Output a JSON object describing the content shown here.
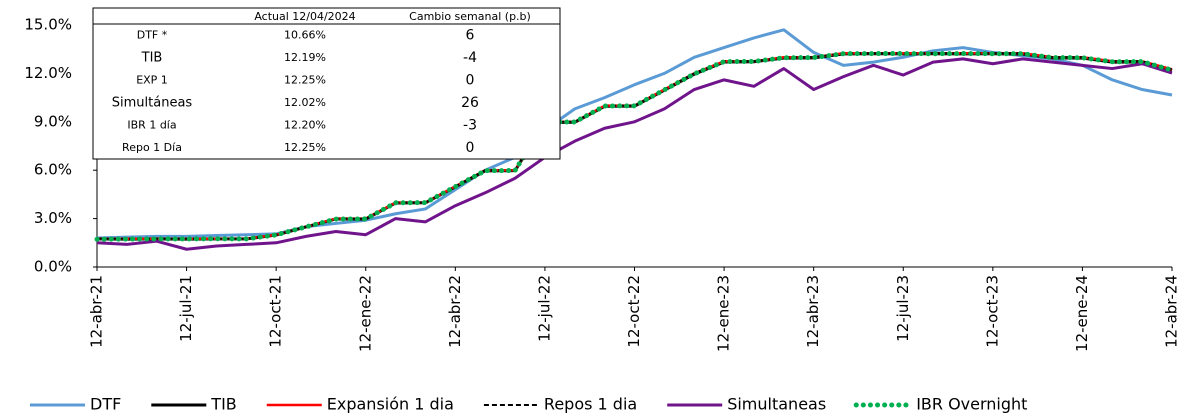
{
  "chart_data": {
    "type": "line",
    "categories": [
      "12-abr-21",
      null,
      null,
      "12-jul-21",
      null,
      null,
      "12-oct-21",
      null,
      null,
      "12-ene-22",
      null,
      null,
      "12-abr-22",
      null,
      null,
      "12-jul-22",
      null,
      null,
      "12-oct-22",
      null,
      null,
      "12-ene-23",
      null,
      null,
      "12-abr-23",
      null,
      null,
      "12-jul-23",
      null,
      null,
      "12-oct-23",
      null,
      null,
      "12-ene-24",
      null,
      null,
      "12-abr-24"
    ],
    "ylim": [
      0,
      15
    ],
    "yticks": [
      {
        "value": 0,
        "label": "0.0%"
      },
      {
        "value": 3,
        "label": "3.0%"
      },
      {
        "value": 6,
        "label": "6.0%"
      },
      {
        "value": 9,
        "label": "9.0%"
      },
      {
        "value": 12,
        "label": "12.0%"
      },
      {
        "value": 15,
        "label": "15.0%"
      }
    ],
    "legend": "bottom",
    "series": [
      {
        "name": "DTF",
        "color": "#5b9bd5",
        "style": "solid",
        "values": [
          1.8,
          1.85,
          1.9,
          1.9,
          1.95,
          2.0,
          2.05,
          2.5,
          2.7,
          2.9,
          3.3,
          3.6,
          4.8,
          6.0,
          6.8,
          8.5,
          9.8,
          10.5,
          11.3,
          12.0,
          13.0,
          13.6,
          14.2,
          14.7,
          13.3,
          12.5,
          12.7,
          13.0,
          13.4,
          13.6,
          13.3,
          13.1,
          12.9,
          12.5,
          11.6,
          11.0,
          10.66
        ]
      },
      {
        "name": "TIB",
        "color": "#000000",
        "style": "solid",
        "values": [
          1.74,
          1.73,
          1.74,
          1.73,
          1.74,
          1.74,
          1.98,
          2.48,
          2.98,
          2.97,
          3.97,
          3.98,
          4.97,
          5.96,
          5.97,
          8.96,
          8.97,
          9.96,
          9.97,
          10.96,
          11.95,
          12.71,
          12.72,
          12.95,
          12.96,
          13.21,
          13.22,
          13.21,
          13.22,
          13.21,
          13.22,
          13.2,
          12.96,
          12.95,
          12.7,
          12.71,
          12.19
        ]
      },
      {
        "name": "Expansión 1 dia",
        "color": "#ff0000",
        "style": "solid",
        "values": [
          1.75,
          1.75,
          1.75,
          1.75,
          1.75,
          1.75,
          2.0,
          2.5,
          3.0,
          3.0,
          4.0,
          4.0,
          5.0,
          6.0,
          6.0,
          9.0,
          9.0,
          10.0,
          10.0,
          11.0,
          12.0,
          12.75,
          12.75,
          13.0,
          13.0,
          13.25,
          13.25,
          13.25,
          13.25,
          13.25,
          13.25,
          13.25,
          13.0,
          13.0,
          12.75,
          12.75,
          12.25
        ]
      },
      {
        "name": "Repos 1 dia",
        "color": "#000000",
        "style": "dashed",
        "values": [
          1.75,
          1.75,
          1.75,
          1.75,
          1.75,
          1.75,
          2.0,
          2.5,
          3.0,
          3.0,
          4.0,
          4.0,
          5.0,
          6.0,
          6.0,
          9.0,
          9.0,
          10.0,
          10.0,
          11.0,
          12.0,
          12.75,
          12.75,
          13.0,
          13.0,
          13.25,
          13.25,
          13.25,
          13.25,
          13.25,
          13.25,
          13.25,
          13.0,
          13.0,
          12.75,
          12.75,
          12.25
        ]
      },
      {
        "name": "Simultaneas",
        "color": "#70148c",
        "style": "solid",
        "values": [
          1.5,
          1.4,
          1.6,
          1.1,
          1.3,
          1.4,
          1.5,
          1.9,
          2.2,
          2.0,
          3.0,
          2.8,
          3.8,
          4.6,
          5.5,
          6.8,
          7.8,
          8.6,
          9.0,
          9.8,
          11.0,
          11.6,
          11.2,
          12.3,
          11.0,
          11.8,
          12.5,
          11.9,
          12.7,
          12.9,
          12.6,
          12.9,
          12.7,
          12.5,
          12.3,
          12.6,
          12.02
        ]
      },
      {
        "name": "IBR Overnight",
        "color": "#00b050",
        "style": "dotted",
        "values": [
          1.72,
          1.73,
          1.74,
          1.74,
          1.75,
          1.74,
          1.99,
          2.49,
          2.97,
          2.98,
          3.98,
          3.99,
          4.98,
          5.97,
          5.98,
          8.98,
          8.99,
          9.98,
          9.99,
          10.98,
          11.97,
          12.73,
          12.74,
          12.97,
          12.98,
          13.22,
          13.23,
          13.23,
          13.22,
          13.23,
          13.22,
          13.22,
          12.98,
          12.97,
          12.72,
          12.73,
          12.2
        ]
      }
    ],
    "table": {
      "header": [
        "Actual 12/04/2024",
        "Cambio semanal (p.b)"
      ],
      "rows": [
        [
          "DTF *",
          "10.66%",
          "6"
        ],
        [
          "TIB",
          "12.19%",
          "-4"
        ],
        [
          "EXP 1",
          "12.25%",
          "0"
        ],
        [
          "Simultáneas",
          "12.02%",
          "26"
        ],
        [
          "IBR 1 día",
          "12.20%",
          "-3"
        ],
        [
          "Repo 1 Día",
          "12.25%",
          "0"
        ]
      ]
    }
  }
}
